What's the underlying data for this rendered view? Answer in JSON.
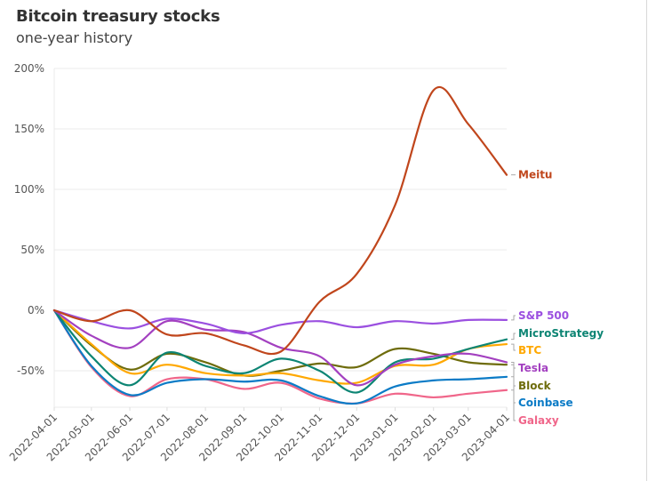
{
  "header": {
    "title": "Bitcoin treasury stocks",
    "subtitle": "one-year history"
  },
  "chart_data": {
    "type": "line",
    "title": "Bitcoin treasury stocks",
    "subtitle": "one-year history",
    "xlabel": "",
    "ylabel": "",
    "x": [
      "2022-04-01",
      "2022-05-01",
      "2022-06-01",
      "2022-07-01",
      "2022-08-01",
      "2022-09-01",
      "2022-10-01",
      "2022-11-01",
      "2022-12-01",
      "2023-01-01",
      "2023-02-01",
      "2023-03-01",
      "2023-04-01"
    ],
    "x_tick_labels": [
      "2022-04-01",
      "2022-05-01",
      "2022-06-01",
      "2022-07-01",
      "2022-08-01",
      "2022-09-01",
      "2022-10-01",
      "2022-11-01",
      "2022-12-01",
      "2023-01-01",
      "2023-02-01",
      "2023-03-01",
      "2023-04-01"
    ],
    "y_ticks": [
      -50,
      0,
      50,
      100,
      150,
      200
    ],
    "y_tick_labels": [
      "-50%",
      "0%",
      "50%",
      "100%",
      "150%",
      "200%"
    ],
    "ylim": [
      -82,
      200
    ],
    "grid": true,
    "legend": "direct-labels-right",
    "series": [
      {
        "name": "Meitu",
        "color": "#c0461c",
        "values": [
          0,
          -9,
          0,
          -20,
          -19,
          -29,
          -34,
          7,
          30,
          87,
          182,
          154,
          112
        ]
      },
      {
        "name": "S&P 500",
        "color": "#9b50e0",
        "values": [
          0,
          -9,
          -15,
          -7,
          -11,
          -19,
          -12,
          -9,
          -14,
          -9,
          -11,
          -8,
          -8
        ]
      },
      {
        "name": "MicroStrategy",
        "color": "#0d8574",
        "values": [
          0,
          -38,
          -62,
          -35,
          -46,
          -52,
          -40,
          -50,
          -68,
          -43,
          -40,
          -32,
          -24
        ]
      },
      {
        "name": "BTC",
        "color": "#ffa800",
        "values": [
          0,
          -28,
          -52,
          -45,
          -52,
          -54,
          -52,
          -58,
          -60,
          -46,
          -45,
          -32,
          -28
        ]
      },
      {
        "name": "Tesla",
        "color": "#a340c0",
        "values": [
          0,
          -21,
          -31,
          -9,
          -16,
          -18,
          -31,
          -38,
          -62,
          -45,
          -38,
          -36,
          -43
        ]
      },
      {
        "name": "Block",
        "color": "#6e6c0c",
        "values": [
          0,
          -29,
          -49,
          -36,
          -43,
          -54,
          -50,
          -44,
          -47,
          -32,
          -36,
          -43,
          -45
        ]
      },
      {
        "name": "Coinbase",
        "color": "#0b7bc6",
        "values": [
          0,
          -46,
          -70,
          -60,
          -57,
          -59,
          -58,
          -71,
          -77,
          -63,
          -58,
          -57,
          -55
        ]
      },
      {
        "name": "Galaxy",
        "color": "#f0668a",
        "values": [
          0,
          -47,
          -71,
          -57,
          -57,
          -65,
          -60,
          -73,
          -77,
          -69,
          -72,
          -69,
          -66
        ]
      }
    ],
    "labels": [
      "Meitu",
      "S&P 500",
      "MicroStrategy",
      "BTC",
      "Tesla",
      "Block",
      "Coinbase",
      "Galaxy"
    ]
  }
}
